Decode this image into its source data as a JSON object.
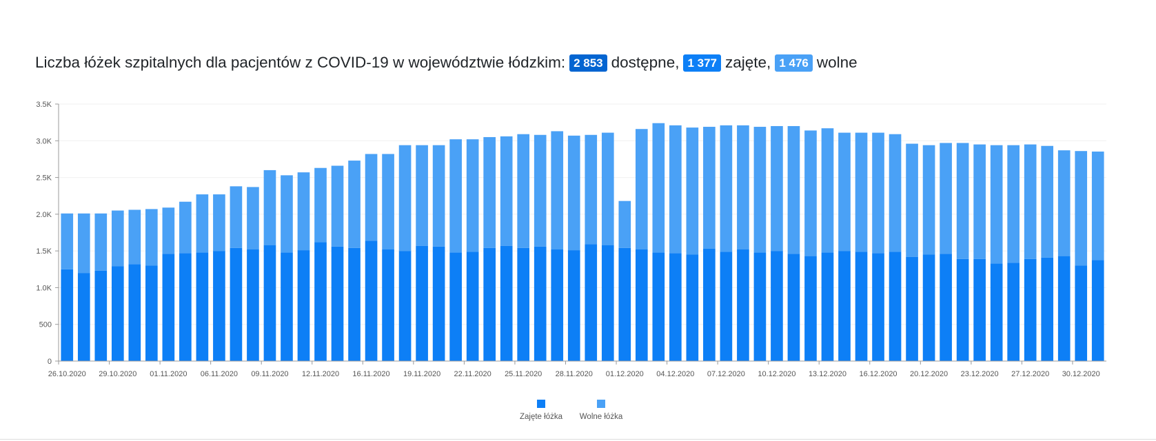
{
  "header": {
    "title_text": "Liczba łóżek szpitalnych dla pacjentów z COVID-19 w województwie łódzkim:",
    "available_value": "2 853",
    "available_label": "dostępne,",
    "occupied_value": "1 377",
    "occupied_label": "zajęte,",
    "free_value": "1 476",
    "free_label": "wolne"
  },
  "colors": {
    "occupied": "#0d7ff6",
    "free": "#4aa1f6",
    "available_badge": "#0465d1"
  },
  "chart_data": {
    "type": "bar",
    "stacked": true,
    "ylim": [
      0,
      3500
    ],
    "y_ticks": [
      "0",
      "500",
      "1.0K",
      "1.5K",
      "2.0K",
      "2.5K",
      "3.0K",
      "3.5K"
    ],
    "y_tick_values": [
      0,
      500,
      1000,
      1500,
      2000,
      2500,
      3000,
      3500
    ],
    "x_tick_labels": [
      "26.10.2020",
      "29.10.2020",
      "01.11.2020",
      "06.11.2020",
      "09.11.2020",
      "12.11.2020",
      "16.11.2020",
      "19.11.2020",
      "22.11.2020",
      "25.11.2020",
      "28.11.2020",
      "01.12.2020",
      "04.12.2020",
      "07.12.2020",
      "10.12.2020",
      "13.12.2020",
      "16.12.2020",
      "20.12.2020",
      "23.12.2020",
      "27.12.2020",
      "30.12.2020"
    ],
    "x_tick_every": 3,
    "grid": true,
    "legend_position": "bottom-center",
    "series": [
      {
        "name": "Zajęte łóżka",
        "color": "#0d7ff6",
        "values": [
          1250,
          1200,
          1230,
          1290,
          1320,
          1300,
          1460,
          1470,
          1480,
          1500,
          1540,
          1520,
          1580,
          1480,
          1510,
          1620,
          1560,
          1540,
          1640,
          1520,
          1500,
          1570,
          1560,
          1480,
          1490,
          1540,
          1570,
          1540,
          1560,
          1520,
          1510,
          1590,
          1580,
          1540,
          1520,
          1480,
          1470,
          1450,
          1530,
          1490,
          1520,
          1480,
          1500,
          1460,
          1430,
          1480,
          1500,
          1490,
          1470,
          1490,
          1420,
          1450,
          1460,
          1390,
          1390,
          1330,
          1340,
          1390,
          1410,
          1430,
          1300,
          1377
        ]
      },
      {
        "name": "Wolne łóżka",
        "color": "#4aa1f6",
        "values": [
          760,
          810,
          780,
          760,
          740,
          770,
          630,
          700,
          790,
          770,
          840,
          850,
          1020,
          1050,
          1060,
          1010,
          1100,
          1190,
          1180,
          1300,
          1440,
          1370,
          1380,
          1540,
          1530,
          1510,
          1490,
          1550,
          1520,
          1610,
          1560,
          1490,
          1530,
          640,
          1640,
          1760,
          1740,
          1730,
          1660,
          1720,
          1690,
          1710,
          1700,
          1740,
          1710,
          1690,
          1610,
          1620,
          1640,
          1600,
          1540,
          1490,
          1510,
          1580,
          1560,
          1610,
          1600,
          1560,
          1520,
          1440,
          1560,
          1476
        ]
      }
    ]
  }
}
